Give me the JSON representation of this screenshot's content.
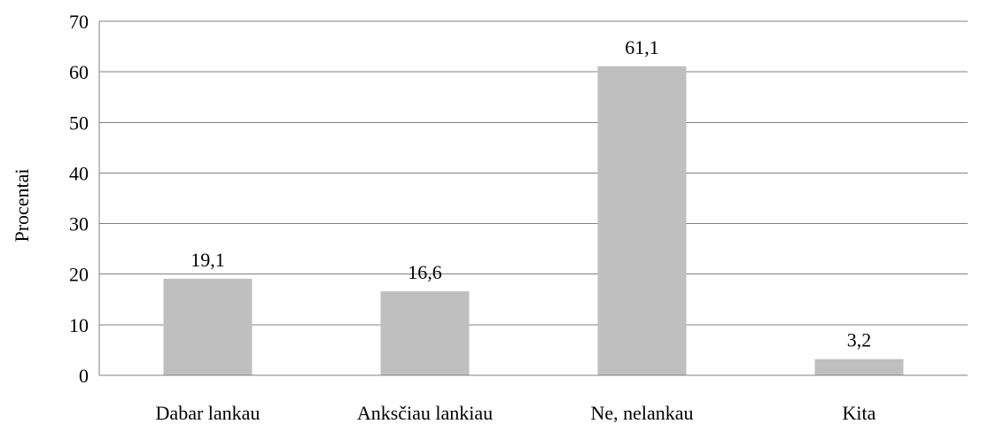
{
  "chart_data": {
    "type": "bar",
    "categories": [
      "Dabar lankau",
      "Anksčiau lankiau",
      "Ne, nelankau",
      "Kita"
    ],
    "values": [
      19.1,
      16.6,
      61.1,
      3.2
    ],
    "data_labels": [
      "19,1",
      "16,6",
      "61,1",
      "3,2"
    ],
    "y_ticks": [
      "0",
      "10",
      "20",
      "30",
      "40",
      "50",
      "60",
      "70"
    ],
    "ylabel": "Procentai",
    "xlabel": "",
    "title": "",
    "ylim": [
      0,
      70
    ],
    "grid": true,
    "legend": "none",
    "bar_color": "#bfbfbf",
    "grid_color": "#808080"
  }
}
